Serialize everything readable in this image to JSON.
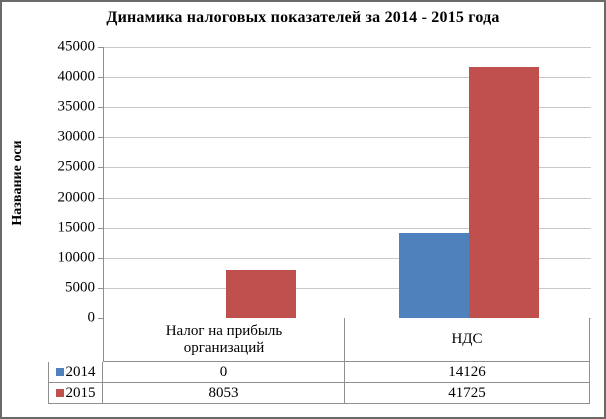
{
  "window": {
    "background": "#FFFFFF",
    "outer_border_color": "#6A6A6A"
  },
  "chart_data": {
    "type": "bar",
    "title": "Динамика налоговых показателей за 2014 - 2015 года",
    "ylabel": "Название оси",
    "xlabel": "",
    "categories": [
      "Налог на прибыль организаций",
      "НДС"
    ],
    "series": [
      {
        "name": "2014",
        "color": "#4F81BD",
        "values": [
          0,
          14126
        ]
      },
      {
        "name": "2015",
        "color": "#C0504D",
        "values": [
          8053,
          41725
        ]
      }
    ],
    "ylim": [
      0,
      45000
    ],
    "yticks": [
      45000,
      40000,
      35000,
      30000,
      25000,
      20000,
      15000,
      10000,
      5000,
      0
    ],
    "grid": "horizontal-major",
    "gridline_color": "#C9C9C9",
    "axis_color": "#8F8F8F",
    "legend_position": "data-table-left",
    "data_table_shown": true,
    "data_table_values": [
      {
        "series": "2014",
        "cells": [
          "0",
          "14126"
        ]
      },
      {
        "series": "2015",
        "cells": [
          "8053",
          "41725"
        ]
      }
    ]
  }
}
